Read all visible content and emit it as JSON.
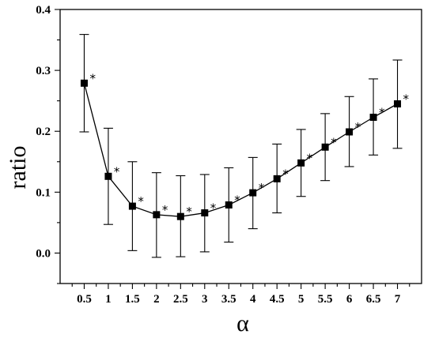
{
  "chart_data": {
    "type": "line",
    "title": "",
    "xlabel": "α",
    "ylabel": "ratio",
    "xlim": [
      0,
      7.5
    ],
    "ylim": [
      -0.05,
      0.4
    ],
    "x_ticks": [
      0.5,
      1,
      1.5,
      2,
      2.5,
      3,
      3.5,
      4,
      4.5,
      5,
      5.5,
      6,
      6.5,
      7
    ],
    "x_tick_labels": [
      "0.5",
      "1",
      "1.5",
      "2",
      "2.5",
      "3",
      "3.5",
      "4",
      "4.5",
      "5",
      "5.5",
      "6",
      "6.5",
      "7"
    ],
    "y_ticks": [
      0.0,
      0.1,
      0.2,
      0.3,
      0.4
    ],
    "y_tick_labels": [
      "0.0",
      "0.1",
      "0.2",
      "0.3",
      "0.4"
    ],
    "grid": false,
    "marker": "square",
    "annotation_symbol": "*",
    "series": [
      {
        "x": [
          0.5,
          1,
          1.5,
          2,
          2.5,
          3,
          3.5,
          4,
          4.5,
          5,
          5.5,
          6,
          6.5,
          7
        ],
        "values": [
          0.279,
          0.126,
          0.077,
          0.063,
          0.06,
          0.066,
          0.079,
          0.099,
          0.122,
          0.148,
          0.174,
          0.199,
          0.223,
          0.245
        ],
        "err_low": [
          0.199,
          0.047,
          0.004,
          -0.007,
          -0.006,
          0.002,
          0.018,
          0.04,
          0.066,
          0.093,
          0.119,
          0.142,
          0.161,
          0.172
        ],
        "err_high": [
          0.359,
          0.205,
          0.15,
          0.132,
          0.127,
          0.129,
          0.14,
          0.157,
          0.179,
          0.203,
          0.229,
          0.257,
          0.286,
          0.317
        ]
      }
    ]
  }
}
